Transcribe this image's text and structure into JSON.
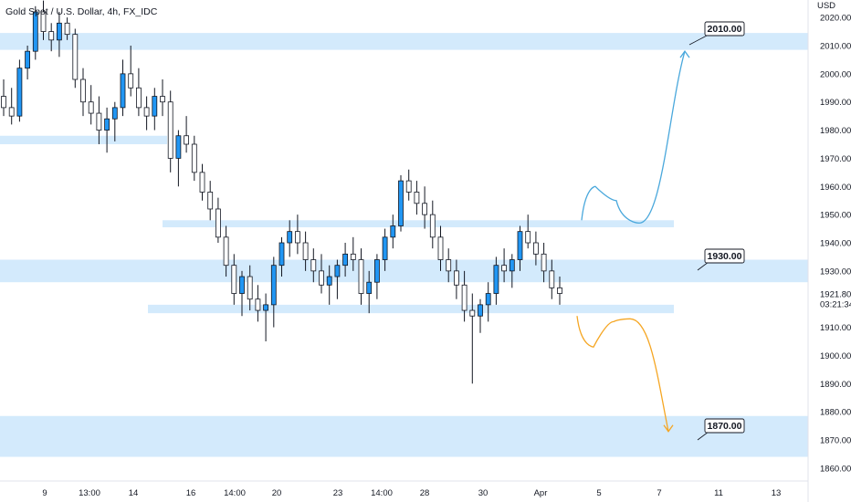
{
  "header": {
    "title": "Gold Spot / U.S. Dollar, 4h, FX_IDC"
  },
  "price_axis": {
    "currency": "USD",
    "ticks": [
      "2020.00",
      "2010.00",
      "2000.00",
      "1990.00",
      "1980.00",
      "1970.00",
      "1960.00",
      "1950.00",
      "1940.00",
      "1930.00",
      "1910.00",
      "1900.00",
      "1890.00",
      "1880.00",
      "1870.00",
      "1860.00"
    ],
    "last_price": "1921.80",
    "countdown": "03:21:34"
  },
  "time_axis": {
    "labels": [
      "9",
      "13:00",
      "14",
      "16",
      "14:00",
      "20",
      "23",
      "14:00",
      "28",
      "30",
      "Apr",
      "5",
      "7",
      "11",
      "13"
    ]
  },
  "annotations": {
    "callouts": [
      "2010.00",
      "1930.00",
      "1870.00"
    ]
  },
  "colors": {
    "zone": "#bbdefb",
    "bull_body": "#2196f3",
    "bear_body": "#ffffff",
    "candle_outline": "#131722",
    "up_arrow": "#4aa8dc",
    "down_arrow": "#f5a623"
  },
  "chart_data": {
    "type": "candlestick",
    "title": "Gold Spot / U.S. Dollar, 4h, FX_IDC",
    "y_unit": "USD",
    "ylim": [
      1855,
      2024
    ],
    "last_price": 1921.8,
    "zones": [
      {
        "low": 2008.5,
        "high": 2014.5
      },
      {
        "low": 1975.0,
        "high": 1978.0
      },
      {
        "low": 1945.5,
        "high": 1948.0
      },
      {
        "low": 1926.0,
        "high": 1934.0
      },
      {
        "low": 1915.0,
        "high": 1918.0
      },
      {
        "low": 1864.0,
        "high": 1878.5
      }
    ],
    "projections": [
      {
        "scenario": "bullish",
        "path": [
          1948,
          1960,
          1955,
          1947,
          1955,
          2008
        ],
        "target": 2010.0
      },
      {
        "scenario": "bearish",
        "path": [
          1914,
          1903,
          1912,
          1913,
          1896,
          1873
        ],
        "target": 1870.0
      }
    ],
    "candles": [
      [
        1992,
        1998,
        1985,
        1988
      ],
      [
        1988,
        1995,
        1982,
        1985
      ],
      [
        1985,
        2005,
        1983,
        2002
      ],
      [
        2002,
        2010,
        1998,
        2008
      ],
      [
        2008,
        2024,
        2005,
        2022
      ],
      [
        2022,
        2026,
        2012,
        2015
      ],
      [
        2015,
        2018,
        2008,
        2012
      ],
      [
        2012,
        2022,
        2006,
        2018
      ],
      [
        2018,
        2020,
        2012,
        2014
      ],
      [
        2014,
        2016,
        1995,
        1998
      ],
      [
        1998,
        2002,
        1985,
        1990
      ],
      [
        1990,
        1996,
        1982,
        1986
      ],
      [
        1986,
        1992,
        1975,
        1980
      ],
      [
        1980,
        1988,
        1972,
        1984
      ],
      [
        1984,
        1990,
        1976,
        1988
      ],
      [
        1988,
        2005,
        1985,
        2000
      ],
      [
        2000,
        2010,
        1992,
        1995
      ],
      [
        1995,
        2002,
        1985,
        1988
      ],
      [
        1988,
        1992,
        1980,
        1985
      ],
      [
        1985,
        1995,
        1980,
        1992
      ],
      [
        1992,
        1998,
        1985,
        1990
      ],
      [
        1990,
        1994,
        1965,
        1970
      ],
      [
        1970,
        1980,
        1960,
        1978
      ],
      [
        1978,
        1985,
        1972,
        1975
      ],
      [
        1975,
        1978,
        1962,
        1965
      ],
      [
        1965,
        1968,
        1955,
        1958
      ],
      [
        1958,
        1962,
        1948,
        1952
      ],
      [
        1952,
        1956,
        1940,
        1942
      ],
      [
        1942,
        1946,
        1928,
        1932
      ],
      [
        1932,
        1936,
        1918,
        1922
      ],
      [
        1922,
        1930,
        1914,
        1928
      ],
      [
        1928,
        1932,
        1916,
        1920
      ],
      [
        1920,
        1925,
        1912,
        1916
      ],
      [
        1916,
        1922,
        1905,
        1918
      ],
      [
        1918,
        1935,
        1910,
        1932
      ],
      [
        1932,
        1942,
        1928,
        1940
      ],
      [
        1940,
        1948,
        1935,
        1944
      ],
      [
        1944,
        1950,
        1936,
        1940
      ],
      [
        1940,
        1944,
        1930,
        1934
      ],
      [
        1934,
        1938,
        1926,
        1930
      ],
      [
        1930,
        1936,
        1922,
        1925
      ],
      [
        1925,
        1932,
        1918,
        1928
      ],
      [
        1928,
        1934,
        1920,
        1932
      ],
      [
        1932,
        1940,
        1928,
        1936
      ],
      [
        1936,
        1942,
        1930,
        1934
      ],
      [
        1934,
        1938,
        1918,
        1922
      ],
      [
        1922,
        1930,
        1915,
        1926
      ],
      [
        1926,
        1936,
        1920,
        1934
      ],
      [
        1934,
        1945,
        1930,
        1942
      ],
      [
        1942,
        1950,
        1938,
        1946
      ],
      [
        1946,
        1964,
        1944,
        1962
      ],
      [
        1962,
        1966,
        1955,
        1958
      ],
      [
        1958,
        1962,
        1950,
        1954
      ],
      [
        1954,
        1960,
        1945,
        1950
      ],
      [
        1950,
        1955,
        1938,
        1942
      ],
      [
        1942,
        1946,
        1930,
        1934
      ],
      [
        1934,
        1938,
        1926,
        1930
      ],
      [
        1930,
        1934,
        1920,
        1925
      ],
      [
        1925,
        1930,
        1912,
        1916
      ],
      [
        1916,
        1922,
        1890,
        1914
      ],
      [
        1914,
        1920,
        1908,
        1918
      ],
      [
        1918,
        1926,
        1912,
        1922
      ],
      [
        1922,
        1935,
        1918,
        1932
      ],
      [
        1932,
        1938,
        1926,
        1930
      ],
      [
        1930,
        1936,
        1924,
        1934
      ],
      [
        1934,
        1946,
        1930,
        1944
      ],
      [
        1944,
        1950,
        1938,
        1940
      ],
      [
        1940,
        1944,
        1932,
        1936
      ],
      [
        1936,
        1940,
        1926,
        1930
      ],
      [
        1930,
        1934,
        1920,
        1924
      ],
      [
        1924,
        1928,
        1918,
        1922
      ]
    ]
  }
}
